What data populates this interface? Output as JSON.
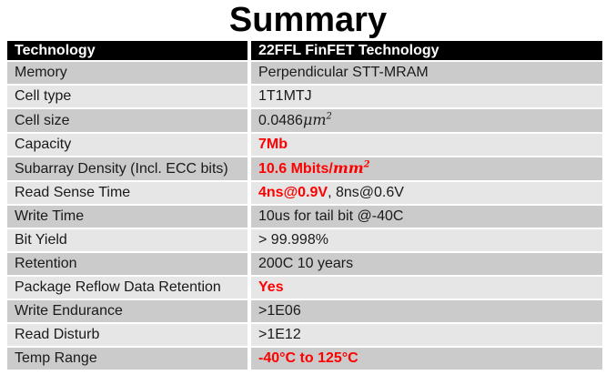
{
  "title": "Summary",
  "colors": {
    "red": "#ff0000",
    "header_bg": "#000000",
    "header_text": "#ffffff",
    "row_dark": "#cbcbcb",
    "row_light": "#e6e6e6"
  },
  "table": {
    "header": {
      "col1": "Technology",
      "col2": "22FFL FinFET Technology"
    },
    "rows": [
      {
        "label": "Memory",
        "value": [
          {
            "t": "Perpendicular STT-MRAM"
          }
        ]
      },
      {
        "label": "Cell type",
        "value": [
          {
            "t": "1T1MTJ"
          }
        ]
      },
      {
        "label": "Cell size",
        "value": [
          {
            "t": "0.0486"
          },
          {
            "t": "μm",
            "c": "math"
          },
          {
            "t": "2",
            "c": "math sup"
          }
        ]
      },
      {
        "label": "Capacity",
        "value": [
          {
            "t": "7Mb",
            "c": "red bold"
          }
        ]
      },
      {
        "label": "Subarray Density (Incl. ECC bits)",
        "value": [
          {
            "t": "10.6 Mbits/",
            "c": "red bold"
          },
          {
            "t": "mm",
            "c": "red bold math"
          },
          {
            "t": "2",
            "c": "red bold math sup"
          }
        ]
      },
      {
        "label": "Read Sense Time",
        "value": [
          {
            "t": "4ns@0.9V",
            "c": "red bold"
          },
          {
            "t": ", 8ns@0.6V"
          }
        ]
      },
      {
        "label": "Write Time",
        "value": [
          {
            "t": "10us for tail bit @-40C"
          }
        ]
      },
      {
        "label": "Bit Yield",
        "value": [
          {
            "t": "> 99.998%"
          }
        ]
      },
      {
        "label": "Retention",
        "value": [
          {
            "t": "200C 10 years"
          }
        ]
      },
      {
        "label": "Package Reflow Data Retention",
        "value": [
          {
            "t": "Yes",
            "c": "red bold"
          }
        ]
      },
      {
        "label": "Write Endurance",
        "value": [
          {
            "t": ">1E06"
          }
        ]
      },
      {
        "label": "Read Disturb",
        "value": [
          {
            "t": ">1E12"
          }
        ]
      },
      {
        "label": "Temp Range",
        "value": [
          {
            "t": "-40°C to 125°C",
            "c": "red bold"
          }
        ]
      }
    ]
  }
}
